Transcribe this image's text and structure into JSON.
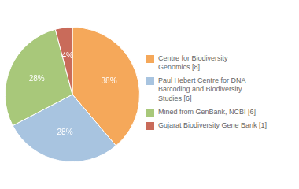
{
  "chart_data": {
    "type": "pie",
    "categories": [
      "Centre for Biodiversity\nGenomics [8]",
      "Paul Hebert Centre for DNA\nBarcoding and Biodiversity\nStudies [6]",
      "Mined from GenBank, NCBI [6]",
      "Gujarat Biodiversity Gene Bank [1]"
    ],
    "values": [
      38,
      28,
      28,
      4
    ],
    "value_labels": [
      "38%",
      "28%",
      "28%",
      "4%"
    ],
    "colors": [
      "#F5A85A",
      "#A8C4E0",
      "#A8C87A",
      "#C96B5A"
    ],
    "data_labels": true,
    "legend": "right"
  }
}
